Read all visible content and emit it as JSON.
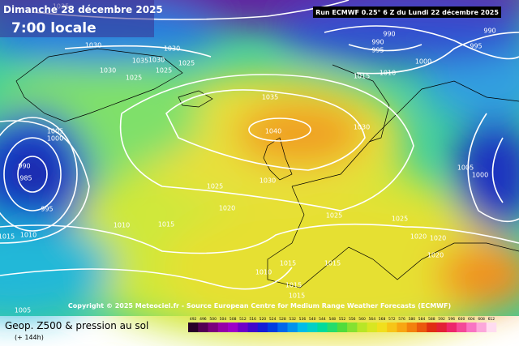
{
  "header": {
    "date": "Dimanche 28 décembre 2025",
    "time": "7:00 locale",
    "run": "Run ECMWF 0.25° 6 Z du Lundi 22 décembre 2025"
  },
  "isobar_labels": [
    1035,
    1030,
    1035,
    1030,
    1030,
    1025,
    1030,
    1025,
    1025,
    990,
    990,
    995,
    990,
    995,
    1000,
    1015,
    1010,
    1035,
    1040,
    1030,
    1005,
    1000,
    990,
    985,
    995,
    1005,
    1000,
    1025,
    1030,
    1020,
    1010,
    1015,
    1025,
    1025,
    1015,
    1010,
    1020,
    1020,
    1020,
    1010,
    1015,
    1015,
    1015,
    1015,
    1005
  ],
  "copyright": "Copyright © 2025 Meteociel.fr - Source European Centre for Medium Range Weather Forecasts (ECMWF)",
  "footer": {
    "title": "Geop. Z500 & pression au sol",
    "lead": "(+ 144h)"
  },
  "colorbar": {
    "labels": [
      492,
      496,
      500,
      504,
      508,
      512,
      516,
      520,
      524,
      528,
      532,
      536,
      540,
      544,
      548,
      552,
      556,
      560,
      564,
      568,
      572,
      576,
      580,
      584,
      588,
      592,
      596,
      600,
      604,
      608,
      612
    ]
  }
}
